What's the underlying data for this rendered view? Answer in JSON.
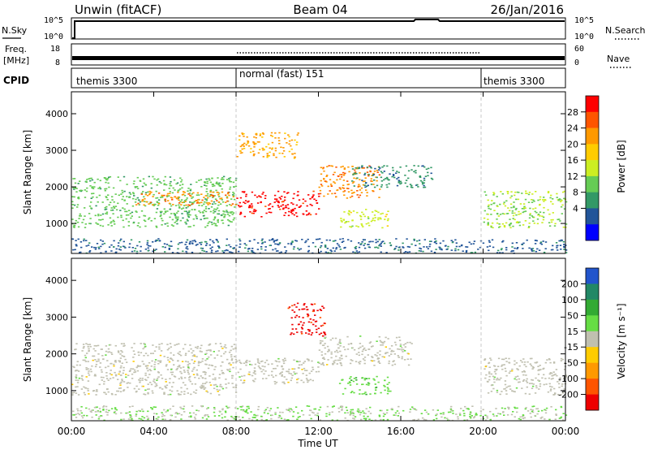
{
  "header": {
    "station": "Unwin (fitACF)",
    "beam": "Beam 04",
    "date": "26/Jan/2016"
  },
  "status_panels": {
    "nsky_label": "N.Sky",
    "nsky_ticks": [
      "10^5",
      "10^0"
    ],
    "nsearch_label": "N.Search",
    "nsearch_ticks": [
      "10^5",
      "10^0"
    ],
    "freq_label_line1": "Freq.",
    "freq_label_line2": "[MHz]",
    "freq_ticks": [
      "18",
      "8"
    ],
    "nave_label": "Nave",
    "nave_ticks": [
      "60",
      "0"
    ],
    "cpid_label": "CPID",
    "cpid_segments": [
      {
        "label": "themis 3300",
        "start": "00:00",
        "end": "08:00"
      },
      {
        "label": "normal (fast) 151",
        "start": "08:00",
        "end": "20:00"
      },
      {
        "label": "themis 3300",
        "start": "20:00",
        "end": "00:00"
      }
    ]
  },
  "axes": {
    "y_label": "Slant Range [km]",
    "y_ticks": [
      "1000",
      "2000",
      "3000",
      "4000"
    ],
    "x_label": "Time UT",
    "x_ticks": [
      "00:00",
      "04:00",
      "08:00",
      "12:00",
      "16:00",
      "20:00",
      "00:00"
    ]
  },
  "power_colorbar": {
    "label": "Power [dB]",
    "ticks": [
      "28",
      "24",
      "20",
      "16",
      "12",
      "8",
      "4"
    ],
    "colors": [
      "#ff0000",
      "#ff5500",
      "#ff9900",
      "#ffcc00",
      "#ccee22",
      "#66cc55",
      "#339966",
      "#225599",
      "#0000ff"
    ]
  },
  "velocity_colorbar": {
    "label": "Velocity [m s⁻¹]",
    "ticks": [
      "200",
      "100",
      "50",
      "15",
      "-15",
      "-50",
      "-100",
      "-200"
    ],
    "colors": [
      "#2255cc",
      "#228866",
      "#33aa33",
      "#66dd44",
      "#c0c0b0",
      "#ffcc00",
      "#ff9900",
      "#ff5500",
      "#ee0000"
    ]
  },
  "chart_data": {
    "type": "heatmap",
    "title": "Unwin (fitACF) Beam 04 26/Jan/2016",
    "xlabel": "Time UT",
    "ylabel": "Slant Range [km]",
    "xlim": [
      "00:00",
      "24:00"
    ],
    "ylim": [
      180,
      4600
    ],
    "grid": false,
    "panels": [
      {
        "name": "Power",
        "unit": "dB",
        "colorbar_range": [
          0,
          32
        ],
        "scatter_regions": [
          {
            "t": [
              0.0,
              8.0
            ],
            "range_km": [
              900,
              2300
            ],
            "value": 12
          },
          {
            "t": [
              3.0,
              8.0
            ],
            "range_km": [
              1500,
              1900
            ],
            "value": 24
          },
          {
            "t": [
              8.0,
              12.0
            ],
            "range_km": [
              1200,
              1900
            ],
            "value": 30
          },
          {
            "t": [
              8.0,
              11.0
            ],
            "range_km": [
              2800,
              3500
            ],
            "value": 22
          },
          {
            "t": [
              12.0,
              15.0
            ],
            "range_km": [
              1700,
              2600
            ],
            "value": 24
          },
          {
            "t": [
              13.5,
              17.5
            ],
            "range_km": [
              2000,
              2600
            ],
            "value": 8
          },
          {
            "t": [
              13.0,
              15.5
            ],
            "range_km": [
              900,
              1400
            ],
            "value": 16
          },
          {
            "t": [
              20.0,
              24.0
            ],
            "range_km": [
              900,
              1900
            ],
            "value": 14
          },
          {
            "t": [
              0.0,
              24.0
            ],
            "range_km": [
              200,
              600
            ],
            "value": 6
          }
        ]
      },
      {
        "name": "Velocity",
        "unit": "m s⁻¹",
        "colorbar_range": [
          -250,
          250
        ],
        "scatter_regions": [
          {
            "t": [
              0.0,
              8.0
            ],
            "range_km": [
              900,
              2300
            ],
            "value": 0
          },
          {
            "t": [
              8.0,
              12.0
            ],
            "range_km": [
              1200,
              1900
            ],
            "value": 0
          },
          {
            "t": [
              12.0,
              16.5
            ],
            "range_km": [
              1700,
              2500
            ],
            "value": 0
          },
          {
            "t": [
              10.5,
              12.3
            ],
            "range_km": [
              2500,
              3400
            ],
            "value": -220
          },
          {
            "t": [
              13.0,
              15.5
            ],
            "range_km": [
              900,
              1400
            ],
            "value": 60
          },
          {
            "t": [
              20.0,
              24.0
            ],
            "range_km": [
              900,
              1900
            ],
            "value": 0
          },
          {
            "t": [
              0.0,
              24.0
            ],
            "range_km": [
              200,
              600
            ],
            "value": 30
          }
        ]
      }
    ]
  }
}
